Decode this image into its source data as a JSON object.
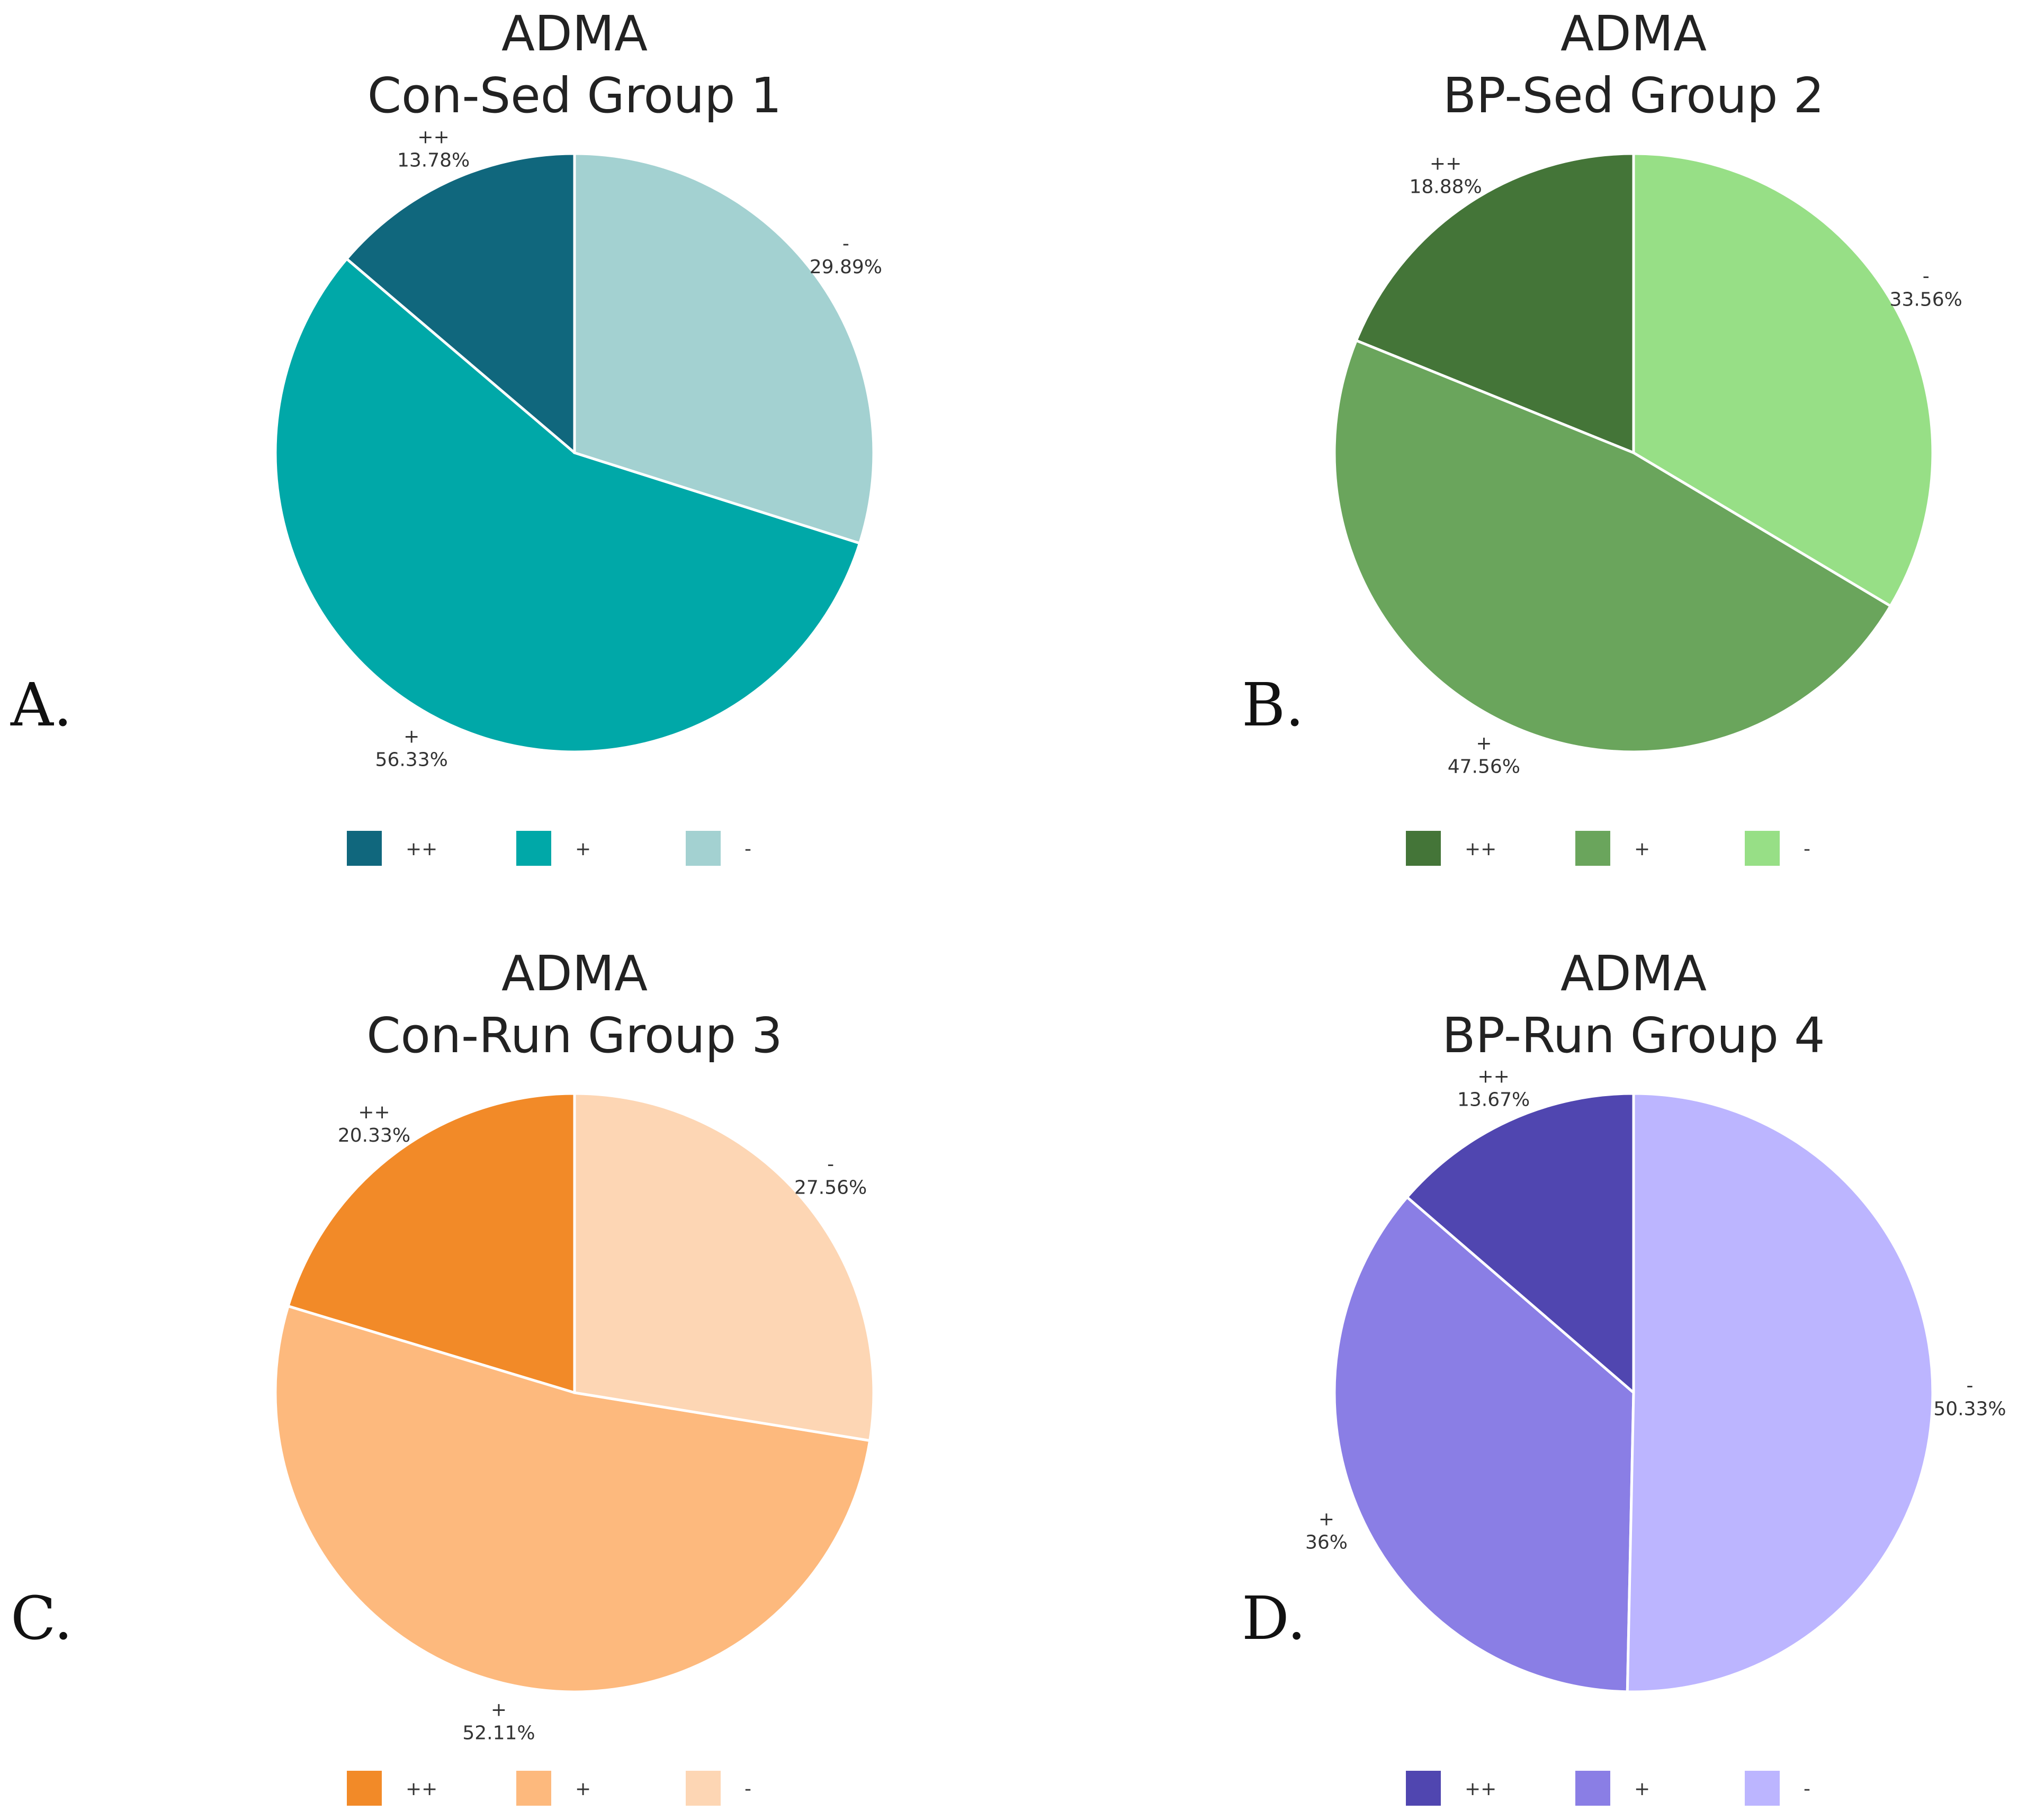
{
  "chart_data": [
    {
      "type": "pie",
      "panel": "A.",
      "title": [
        "ADMA",
        "Con-Sed Group 1"
      ],
      "labels": [
        "++",
        "+",
        "-"
      ],
      "values": [
        13.78,
        56.33,
        29.89
      ],
      "value_labels": [
        "13.78%",
        "56.33%",
        "29.89%"
      ],
      "colors": [
        "#10677d",
        "#00a8a8",
        "#a3d1d1"
      ],
      "legend": [
        "++",
        "+",
        "-"
      ],
      "legend_position": "bottom"
    },
    {
      "type": "pie",
      "panel": "B.",
      "title": [
        "ADMA",
        "BP-Sed Group 2"
      ],
      "labels": [
        "++",
        "+",
        "-"
      ],
      "values": [
        18.88,
        47.56,
        33.56
      ],
      "value_labels": [
        "18.88%",
        "47.56%",
        "33.56%"
      ],
      "colors": [
        "#447538",
        "#6aa55c",
        "#97df86"
      ],
      "legend": [
        "++",
        "+",
        "-"
      ],
      "legend_position": "bottom"
    },
    {
      "type": "pie",
      "panel": "C.",
      "title": [
        "ADMA",
        "Con-Run Group 3"
      ],
      "labels": [
        "++",
        "+",
        "-"
      ],
      "values": [
        20.33,
        52.11,
        27.56
      ],
      "value_labels": [
        "20.33%",
        "52.11%",
        "27.56%"
      ],
      "colors": [
        "#f28a28",
        "#fdb97d",
        "#fdd6b4"
      ],
      "legend": [
        "++",
        "+",
        "-"
      ],
      "legend_position": "bottom"
    },
    {
      "type": "pie",
      "panel": "D.",
      "title": [
        "ADMA",
        "BP-Run Group 4"
      ],
      "labels": [
        "++",
        "+",
        "-"
      ],
      "values": [
        13.67,
        36,
        50.33
      ],
      "value_labels": [
        "13.67%",
        "36%",
        "50.33%"
      ],
      "colors": [
        "#5046b0",
        "#8a7ee5",
        "#bcb5ff"
      ],
      "legend": [
        "++",
        "+",
        "-"
      ],
      "legend_position": "bottom"
    }
  ]
}
